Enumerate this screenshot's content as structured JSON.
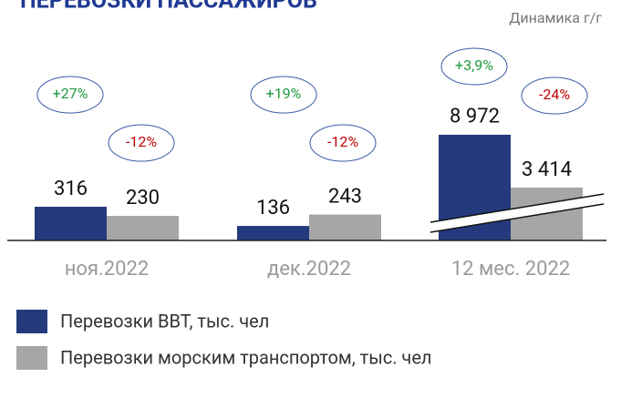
{
  "chart_data": {
    "type": "bar",
    "title": "ПЕРЕВОЗКИ ПАССАЖИРОВ",
    "subtitle": "Динамика г/г",
    "categories": [
      "ноя.2022",
      "дек.2022",
      "12 мес. 2022"
    ],
    "broken_axis": true,
    "series": [
      {
        "name": "Перевозки ВВТ, тыс. чел",
        "color": "#253a7d",
        "values": [
          316,
          136,
          8972
        ],
        "value_labels": [
          "316",
          "136",
          "8 972"
        ],
        "changes": [
          "+27%",
          "+19%",
          "+3,9%"
        ],
        "change_color": "#1e9a3c"
      },
      {
        "name": "Перевозки морским транспортом, тыс. чел",
        "color": "#a6a6a6",
        "values": [
          230,
          243,
          3414
        ],
        "value_labels": [
          "230",
          "243",
          "3 414"
        ],
        "changes": [
          "-12%",
          "-12%",
          "-24%"
        ],
        "change_color": "#c00000"
      }
    ]
  }
}
